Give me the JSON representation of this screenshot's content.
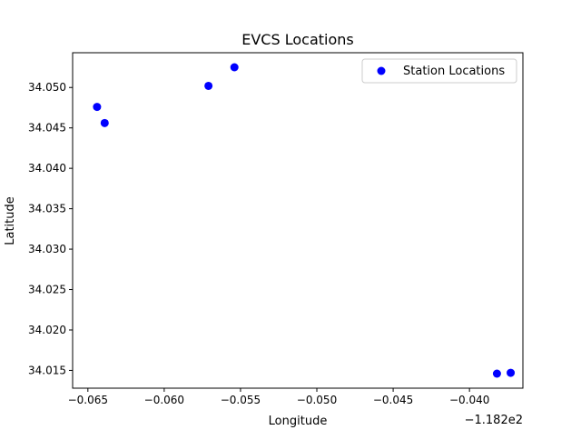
{
  "chart_data": {
    "type": "scatter",
    "title": "EVCS Locations",
    "xlabel": "Longitude",
    "ylabel": "Latitude",
    "x_offset_label": "−1.182e2",
    "xlim": [
      -0.066,
      -0.0365
    ],
    "ylim": [
      34.0128,
      34.0543
    ],
    "grid": false,
    "legend_position": "upper right",
    "x_ticks": [
      {
        "value": -0.065,
        "label": "−0.065"
      },
      {
        "value": -0.06,
        "label": "−0.060"
      },
      {
        "value": -0.055,
        "label": "−0.055"
      },
      {
        "value": -0.05,
        "label": "−0.050"
      },
      {
        "value": -0.045,
        "label": "−0.045"
      },
      {
        "value": -0.04,
        "label": "−0.040"
      }
    ],
    "y_ticks": [
      {
        "value": 34.015,
        "label": "34.015"
      },
      {
        "value": 34.02,
        "label": "34.020"
      },
      {
        "value": 34.025,
        "label": "34.025"
      },
      {
        "value": 34.03,
        "label": "34.030"
      },
      {
        "value": 34.035,
        "label": "34.035"
      },
      {
        "value": 34.04,
        "label": "34.040"
      },
      {
        "value": 34.045,
        "label": "34.045"
      },
      {
        "value": 34.05,
        "label": "34.050"
      }
    ],
    "series": [
      {
        "name": "Station Locations",
        "color": "#0000ff",
        "marker": "circle",
        "points": [
          {
            "x": -0.0644,
            "y": 34.0476
          },
          {
            "x": -0.0639,
            "y": 34.0456
          },
          {
            "x": -0.0571,
            "y": 34.0502
          },
          {
            "x": -0.0554,
            "y": 34.0525
          },
          {
            "x": -0.0382,
            "y": 34.0146
          },
          {
            "x": -0.0373,
            "y": 34.0147
          }
        ]
      }
    ]
  }
}
